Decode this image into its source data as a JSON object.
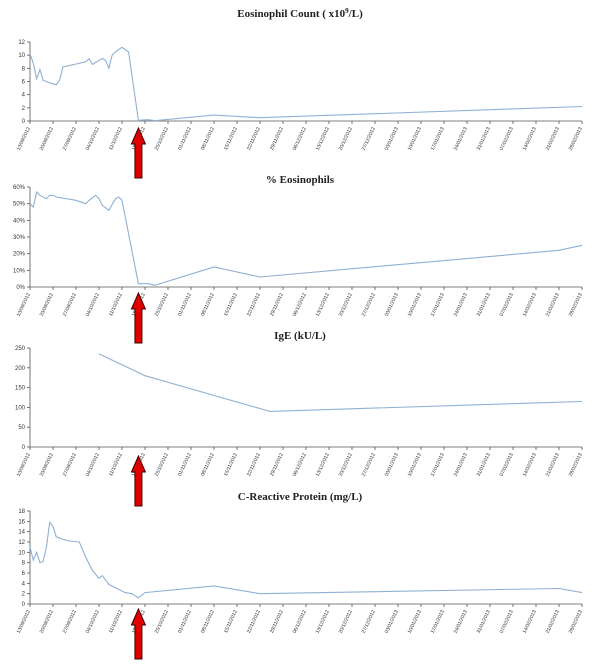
{
  "x_dates": [
    "13/09/2012",
    "20/09/2012",
    "27/09/2012",
    "04/10/2012",
    "11/10/2012",
    "18/10/2012",
    "25/10/2012",
    "01/11/2012",
    "08/11/2012",
    "15/11/2012",
    "22/11/2012",
    "29/11/2012",
    "06/12/2012",
    "13/12/2012",
    "20/12/2012",
    "27/12/2012",
    "03/01/2013",
    "10/01/2013",
    "17/01/2013",
    "24/01/2013",
    "31/01/2013",
    "07/02/2013",
    "14/02/2013",
    "21/02/2013",
    "28/02/2013"
  ],
  "colors": {
    "line": "#8fb0d2",
    "arrow": "#e00000",
    "arrow_outline": "#400000"
  },
  "treatment_marker": {
    "label": "",
    "date": "16/10/2012",
    "shape": "red-up-arrow"
  },
  "chart_data": [
    {
      "type": "line",
      "title": "Eosinophil Count ( x10",
      "title_sup": "9",
      "title_end": "/L)",
      "ylim": [
        0,
        12
      ],
      "yticks": [
        0,
        2,
        4,
        6,
        8,
        10,
        12
      ],
      "ytick_format": "number",
      "grid": false,
      "series": [
        {
          "x": [
            "13/09/2012",
            "14/09/2012",
            "15/09/2012",
            "16/09/2012",
            "17/09/2012",
            "18/09/2012",
            "19/09/2012",
            "21/09/2012",
            "22/09/2012",
            "23/09/2012",
            "30/09/2012",
            "01/10/2012",
            "02/10/2012",
            "05/10/2012",
            "06/10/2012",
            "07/10/2012",
            "08/10/2012",
            "09/10/2012",
            "11/10/2012",
            "13/10/2012",
            "16/10/2012",
            "19/10/2012",
            "21/10/2012",
            "08/11/2012",
            "22/11/2012",
            "28/02/2013"
          ],
          "y": [
            10.2,
            8.8,
            6.4,
            7.8,
            6.2,
            6.0,
            5.8,
            5.5,
            6.2,
            8.2,
            9.0,
            9.5,
            8.6,
            9.5,
            9.2,
            8.0,
            10.0,
            10.5,
            11.2,
            10.5,
            0.1,
            0.2,
            0.05,
            0.9,
            0.5,
            2.2
          ]
        }
      ]
    },
    {
      "type": "line",
      "title": "% Eosinophils",
      "ylim": [
        0,
        0.6
      ],
      "yticks": [
        0,
        0.1,
        0.2,
        0.3,
        0.4,
        0.5,
        0.6
      ],
      "ytick_format": "percent",
      "grid": false,
      "series": [
        {
          "x": [
            "13/09/2012",
            "14/09/2012",
            "15/09/2012",
            "16/09/2012",
            "17/09/2012",
            "18/09/2012",
            "19/09/2012",
            "20/09/2012",
            "21/09/2012",
            "27/09/2012",
            "30/09/2012",
            "01/10/2012",
            "03/10/2012",
            "04/10/2012",
            "05/10/2012",
            "07/10/2012",
            "09/10/2012",
            "10/10/2012",
            "11/10/2012",
            "16/10/2012",
            "19/10/2012",
            "21/10/2012",
            "08/11/2012",
            "22/11/2012",
            "21/02/2013",
            "28/02/2013"
          ],
          "y": [
            0.5,
            0.48,
            0.57,
            0.55,
            0.54,
            0.53,
            0.55,
            0.55,
            0.54,
            0.52,
            0.5,
            0.52,
            0.55,
            0.53,
            0.49,
            0.46,
            0.53,
            0.54,
            0.52,
            0.02,
            0.02,
            0.01,
            0.12,
            0.06,
            0.22,
            0.25
          ]
        }
      ]
    },
    {
      "type": "line",
      "title": "IgE (kU/L)",
      "ylim": [
        0,
        250
      ],
      "yticks": [
        0,
        50,
        100,
        150,
        200,
        250
      ],
      "ytick_format": "number",
      "grid": false,
      "series": [
        {
          "x": [
            "04/10/2012",
            "18/10/2012",
            "25/11/2012",
            "28/02/2013"
          ],
          "y": [
            235,
            180,
            90,
            115
          ]
        }
      ]
    },
    {
      "type": "line",
      "title": "C-Reactive Protein  (mg/L)",
      "ylim": [
        0,
        18
      ],
      "yticks": [
        0,
        2,
        4,
        6,
        8,
        10,
        12,
        14,
        16,
        18
      ],
      "ytick_format": "number",
      "grid": false,
      "series": [
        {
          "x": [
            "13/09/2012",
            "14/09/2012",
            "15/09/2012",
            "16/09/2012",
            "17/09/2012",
            "18/09/2012",
            "19/09/2012",
            "20/09/2012",
            "21/09/2012",
            "23/09/2012",
            "25/09/2012",
            "28/09/2012",
            "30/09/2012",
            "02/10/2012",
            "04/10/2012",
            "05/10/2012",
            "07/10/2012",
            "10/10/2012",
            "12/10/2012",
            "14/10/2012",
            "16/10/2012",
            "18/10/2012",
            "08/11/2012",
            "22/11/2012",
            "21/02/2013",
            "28/02/2013"
          ],
          "y": [
            11,
            8.5,
            10,
            8.0,
            8.2,
            11,
            15.8,
            15.0,
            13,
            12.5,
            12.2,
            12.0,
            9.0,
            6.5,
            5.0,
            5.5,
            3.8,
            2.8,
            2.2,
            2.0,
            1.2,
            2.2,
            3.5,
            2.0,
            3.0,
            2.2
          ]
        }
      ]
    }
  ]
}
